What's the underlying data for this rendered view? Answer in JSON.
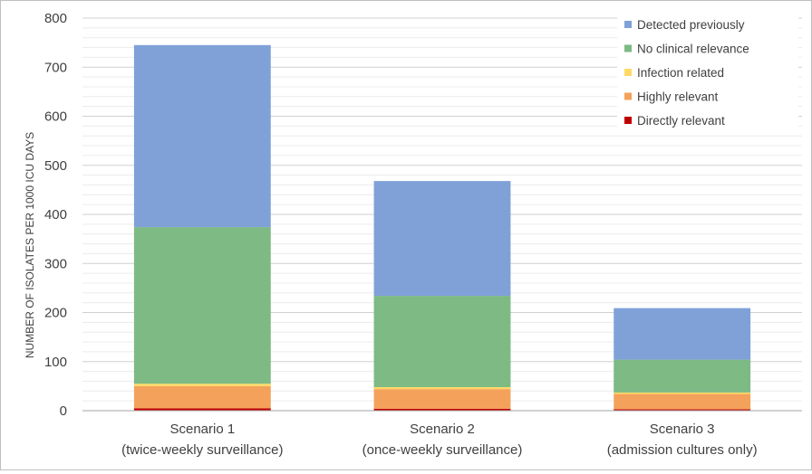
{
  "chart_data": {
    "type": "bar",
    "stacked": true,
    "categories": [
      [
        "Scenario 1",
        "(twice-weekly surveillance)"
      ],
      [
        "Scenario 2",
        "(once-weekly surveillance)"
      ],
      [
        "Scenario 3",
        "(admission cultures only)"
      ]
    ],
    "ylabel": "NUMBER OF ISOLATES  PER 1000 ICU DAYS",
    "xlabel": "",
    "ylim": [
      0,
      800
    ],
    "yticks": [
      0,
      100,
      200,
      300,
      400,
      500,
      600,
      700,
      800
    ],
    "minor_grid_step": 20,
    "grid": true,
    "legend_position": "top-right",
    "series": [
      {
        "name": "Directly relevant",
        "color": "#c00000",
        "values": [
          5,
          4,
          3
        ]
      },
      {
        "name": "Highly relevant",
        "color": "#f4a25b",
        "values": [
          45,
          40,
          31
        ]
      },
      {
        "name": "Infection related",
        "color": "#ffd966",
        "values": [
          5,
          4,
          3
        ]
      },
      {
        "name": "No clinical relevance",
        "color": "#7dba84",
        "values": [
          319,
          186,
          67
        ]
      },
      {
        "name": "Detected previously",
        "color": "#7fa1d8",
        "values": [
          371,
          234,
          105
        ]
      }
    ]
  }
}
